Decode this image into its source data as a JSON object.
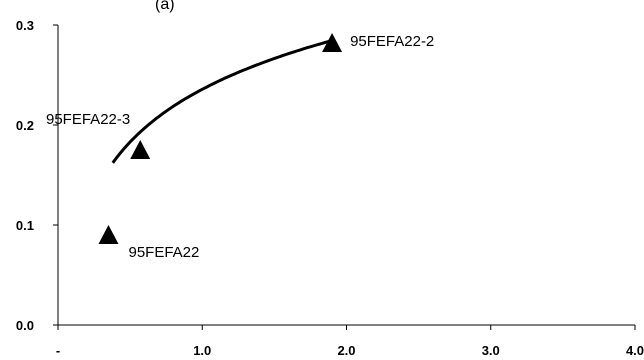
{
  "chart_data": {
    "type": "scatter",
    "title_fragment": "(a)",
    "xlabel": "",
    "ylabel": "",
    "xlim": [
      0,
      4
    ],
    "ylim": [
      0,
      0.3
    ],
    "x_ticks": [
      {
        "value": 0,
        "label": "-"
      },
      {
        "value": 1,
        "label": "1.0"
      },
      {
        "value": 2,
        "label": "2.0"
      },
      {
        "value": 3,
        "label": "3.0"
      },
      {
        "value": 4,
        "label": "4.0"
      }
    ],
    "y_ticks": [
      {
        "value": 0,
        "label": "0.0"
      },
      {
        "value": 0.1,
        "label": "0.1"
      },
      {
        "value": 0.2,
        "label": "0.2"
      },
      {
        "value": 0.3,
        "label": "0.3"
      }
    ],
    "points": [
      {
        "label": "95FEFA22",
        "x": 0.35,
        "y": 0.09
      },
      {
        "label": "95FEFA22-3",
        "x": 0.57,
        "y": 0.175
      },
      {
        "label": "95FEFA22-2",
        "x": 1.9,
        "y": 0.282
      }
    ],
    "trendline": {
      "type": "logarithmic",
      "x_range": [
        0.38,
        1.88
      ],
      "a": 0.2357,
      "b": 0.076
    },
    "grid": false,
    "marker": "triangle",
    "color": "#000000"
  }
}
